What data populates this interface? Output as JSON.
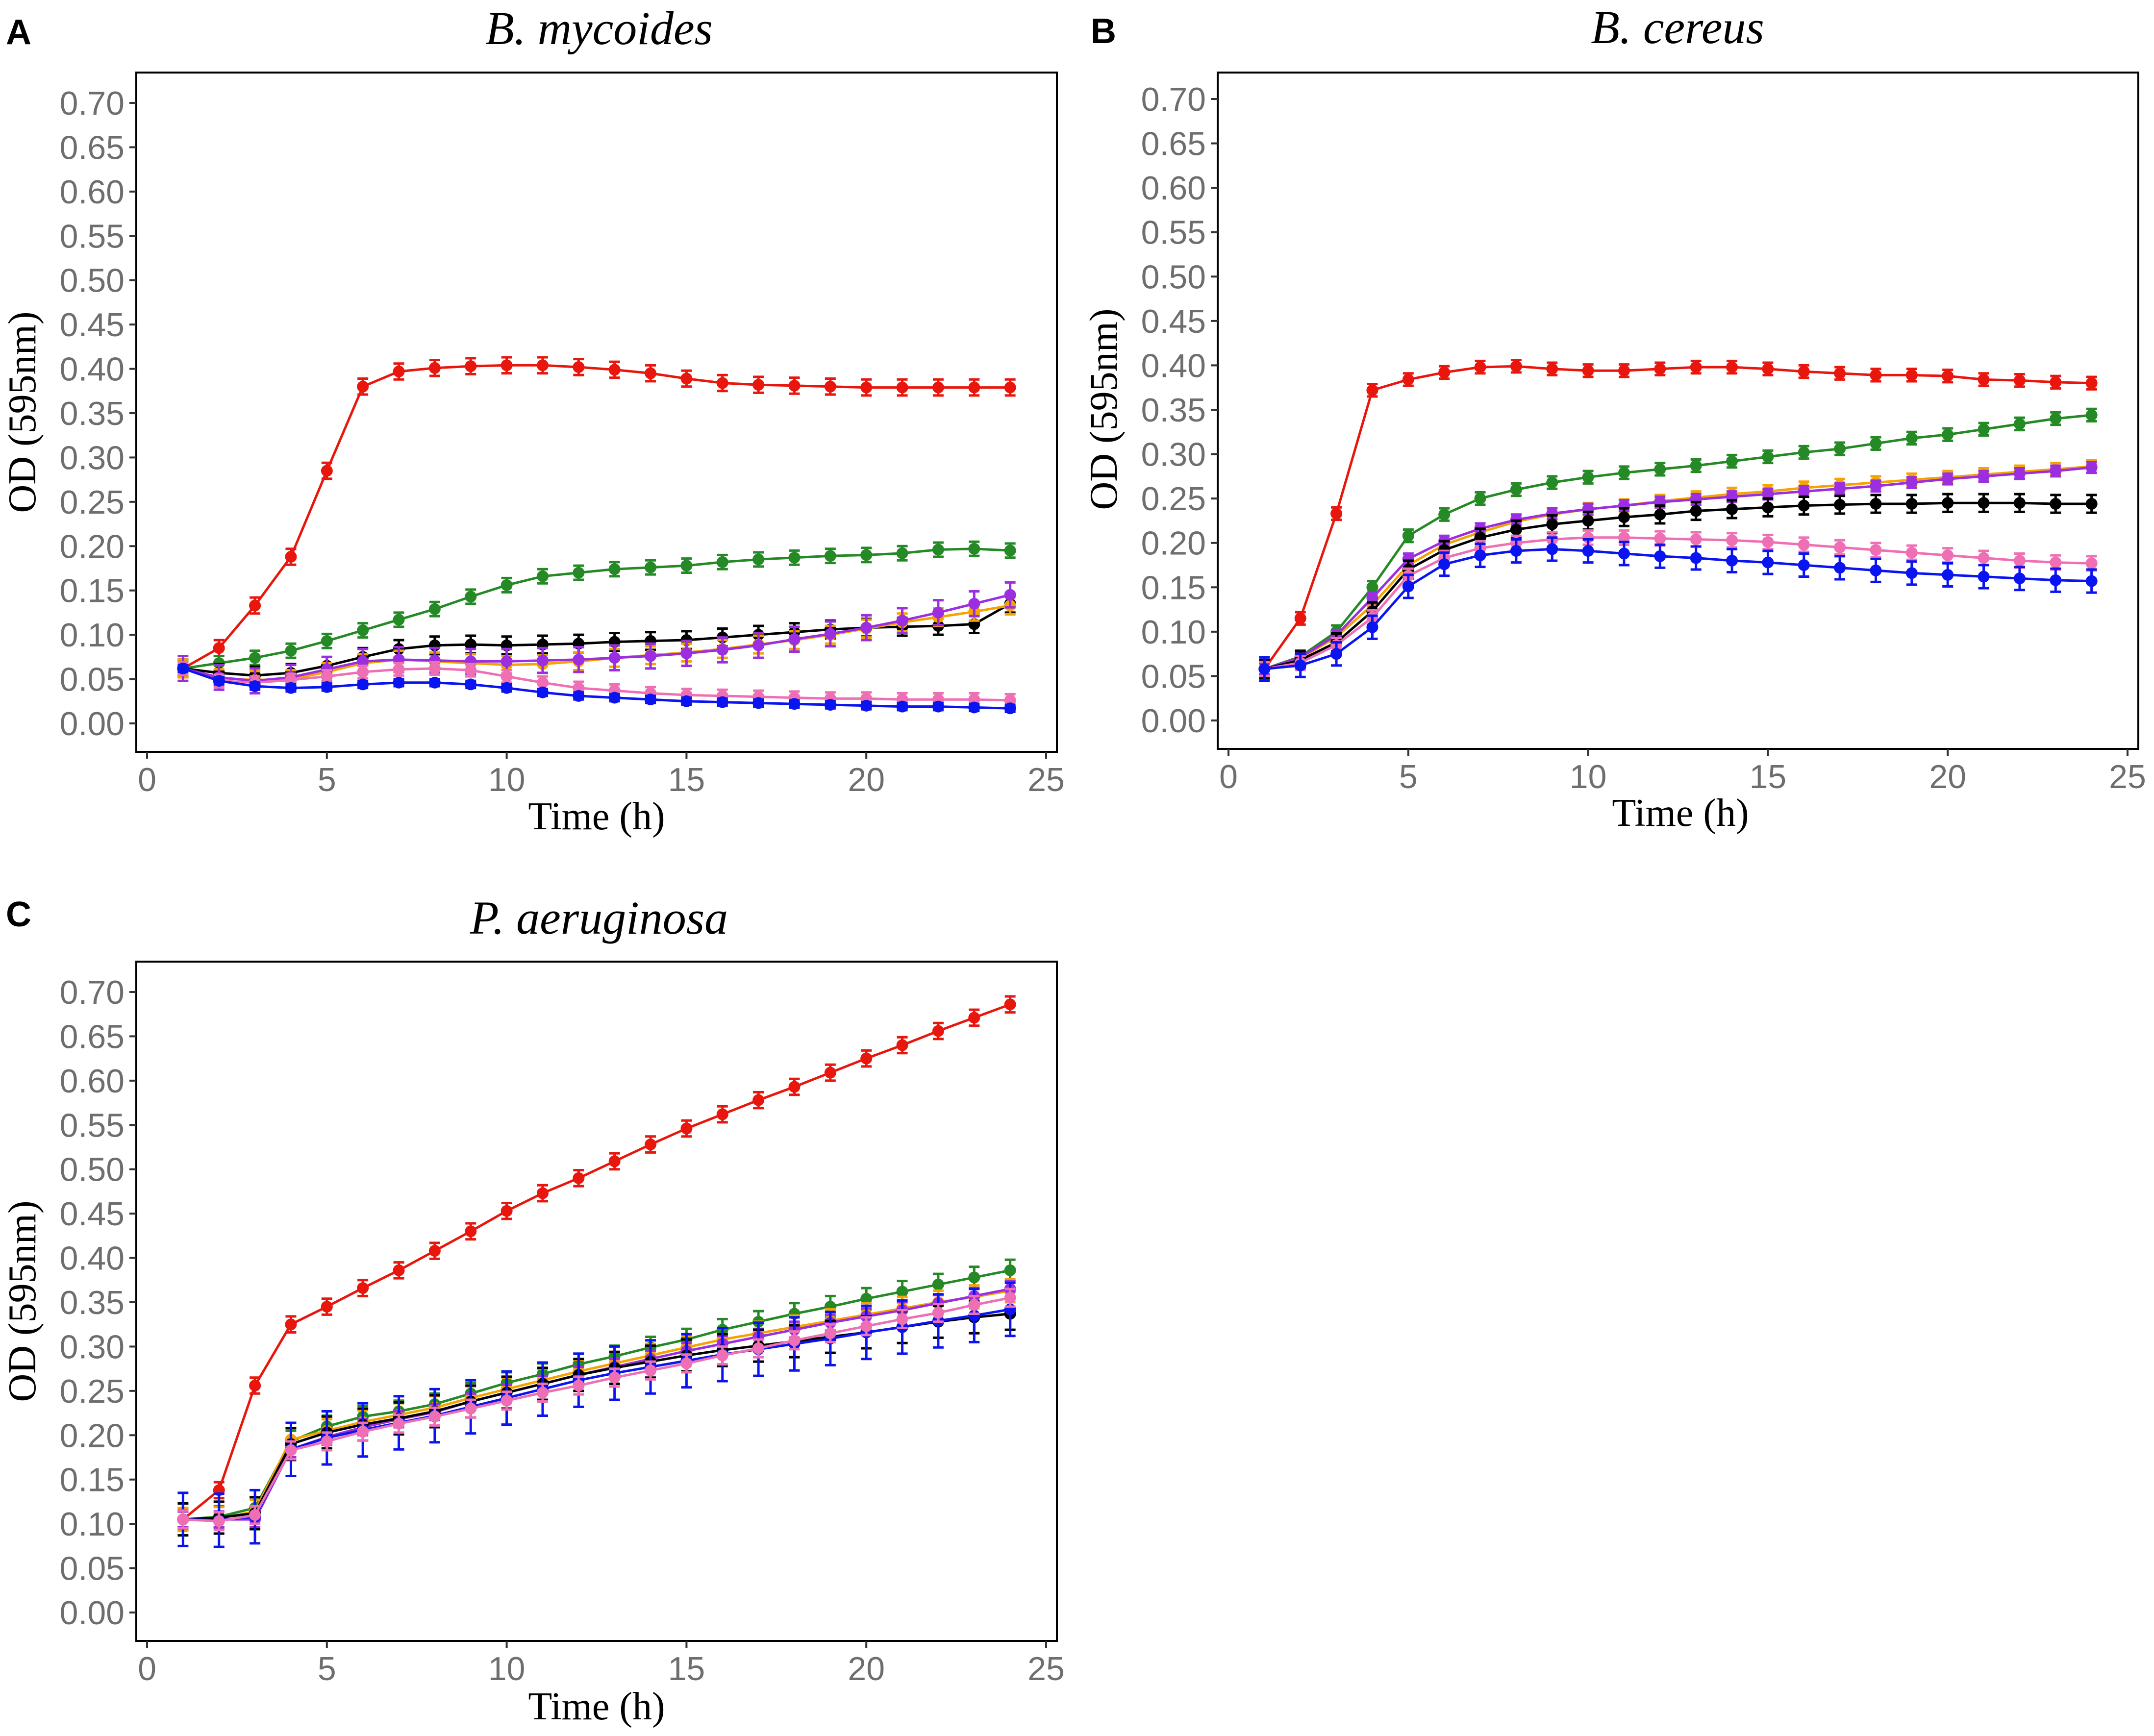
{
  "chart_data": [
    {
      "type": "line",
      "panel_label": "A",
      "title": "B. mycoides",
      "xlabel": "Time (h)",
      "ylabel": "OD (595nm)",
      "xlim": [
        0,
        25
      ],
      "ylim": [
        0,
        0.7
      ],
      "xticks": [
        "0",
        "5",
        "10",
        "15",
        "20",
        "25"
      ],
      "yticks": [
        "0.00",
        "0.05",
        "0.10",
        "0.15",
        "0.20",
        "0.25",
        "0.30",
        "0.35",
        "0.40",
        "0.45",
        "0.50",
        "0.55",
        "0.60",
        "0.65",
        "0.70"
      ],
      "x": [
        1,
        2,
        3,
        4,
        5,
        6,
        7,
        8,
        9,
        10,
        11,
        12,
        13,
        14,
        15,
        16,
        17,
        18,
        19,
        20,
        21,
        22,
        23,
        24
      ],
      "series": [
        {
          "name": "red",
          "color": "#e8160c",
          "values": [
            0.062,
            0.085,
            0.133,
            0.188,
            0.285,
            0.38,
            0.397,
            0.401,
            0.403,
            0.404,
            0.404,
            0.402,
            0.399,
            0.395,
            0.389,
            0.384,
            0.382,
            0.381,
            0.38,
            0.379,
            0.379,
            0.379,
            0.379,
            0.379
          ],
          "err": 0.009
        },
        {
          "name": "green",
          "color": "#258a25",
          "values": [
            0.062,
            0.068,
            0.074,
            0.082,
            0.093,
            0.105,
            0.117,
            0.129,
            0.143,
            0.156,
            0.166,
            0.17,
            0.174,
            0.176,
            0.178,
            0.182,
            0.185,
            0.187,
            0.189,
            0.19,
            0.192,
            0.196,
            0.197,
            0.195
          ],
          "err": 0.008
        },
        {
          "name": "black",
          "color": "#000000",
          "values": [
            0.062,
            0.057,
            0.054,
            0.057,
            0.065,
            0.075,
            0.084,
            0.088,
            0.089,
            0.088,
            0.089,
            0.09,
            0.092,
            0.093,
            0.094,
            0.097,
            0.1,
            0.103,
            0.106,
            0.108,
            0.109,
            0.11,
            0.112,
            0.135
          ],
          "err": 0.01
        },
        {
          "name": "orange",
          "color": "#f5a300",
          "values": [
            0.062,
            0.051,
            0.049,
            0.05,
            0.058,
            0.068,
            0.072,
            0.07,
            0.068,
            0.066,
            0.067,
            0.07,
            0.074,
            0.077,
            0.08,
            0.084,
            0.089,
            0.094,
            0.1,
            0.107,
            0.114,
            0.12,
            0.126,
            0.133
          ],
          "err": 0.01
        },
        {
          "name": "purple",
          "color": "#9a2ee0",
          "values": [
            0.062,
            0.052,
            0.048,
            0.052,
            0.061,
            0.07,
            0.072,
            0.071,
            0.07,
            0.07,
            0.071,
            0.072,
            0.074,
            0.076,
            0.079,
            0.083,
            0.088,
            0.095,
            0.101,
            0.108,
            0.116,
            0.125,
            0.135,
            0.145
          ],
          "err": 0.014
        },
        {
          "name": "pink",
          "color": "#ef6fb5",
          "values": [
            0.062,
            0.048,
            0.046,
            0.049,
            0.053,
            0.058,
            0.061,
            0.062,
            0.06,
            0.053,
            0.046,
            0.04,
            0.037,
            0.034,
            0.032,
            0.031,
            0.03,
            0.029,
            0.028,
            0.028,
            0.027,
            0.027,
            0.027,
            0.026
          ],
          "err": 0.007
        },
        {
          "name": "blue",
          "color": "#0a14f0",
          "values": [
            0.062,
            0.048,
            0.042,
            0.04,
            0.041,
            0.044,
            0.046,
            0.046,
            0.044,
            0.04,
            0.035,
            0.031,
            0.029,
            0.027,
            0.025,
            0.024,
            0.023,
            0.022,
            0.021,
            0.02,
            0.019,
            0.019,
            0.018,
            0.017
          ],
          "err": 0.004
        }
      ]
    },
    {
      "type": "line",
      "panel_label": "B",
      "title": "B. cereus",
      "xlabel": "Time (h)",
      "ylabel": "OD (595nm)",
      "xlim": [
        0,
        25
      ],
      "ylim": [
        0,
        0.7
      ],
      "xticks": [
        "0",
        "5",
        "10",
        "15",
        "20",
        "25"
      ],
      "yticks": [
        "0.00",
        "0.05",
        "0.10",
        "0.15",
        "0.20",
        "0.25",
        "0.30",
        "0.35",
        "0.40",
        "0.45",
        "0.50",
        "0.55",
        "0.60",
        "0.65",
        "0.70"
      ],
      "x": [
        1,
        2,
        3,
        4,
        5,
        6,
        7,
        8,
        9,
        10,
        11,
        12,
        13,
        14,
        15,
        16,
        17,
        18,
        19,
        20,
        21,
        22,
        23,
        24
      ],
      "series": [
        {
          "name": "red",
          "color": "#e8160c",
          "values": [
            0.058,
            0.115,
            0.233,
            0.372,
            0.384,
            0.392,
            0.398,
            0.399,
            0.396,
            0.394,
            0.394,
            0.396,
            0.398,
            0.398,
            0.396,
            0.393,
            0.391,
            0.389,
            0.389,
            0.388,
            0.384,
            0.383,
            0.381,
            0.38
          ],
          "err": 0.007
        },
        {
          "name": "green",
          "color": "#258a25",
          "values": [
            0.058,
            0.072,
            0.1,
            0.15,
            0.208,
            0.232,
            0.25,
            0.26,
            0.268,
            0.274,
            0.279,
            0.283,
            0.287,
            0.292,
            0.297,
            0.302,
            0.306,
            0.312,
            0.318,
            0.322,
            0.328,
            0.334,
            0.34,
            0.344
          ],
          "err": 0.007
        },
        {
          "name": "orange",
          "color": "#f5a300",
          "values": [
            0.058,
            0.07,
            0.094,
            0.13,
            0.175,
            0.198,
            0.212,
            0.224,
            0.232,
            0.238,
            0.242,
            0.247,
            0.251,
            0.255,
            0.258,
            0.262,
            0.265,
            0.268,
            0.271,
            0.274,
            0.277,
            0.28,
            0.283,
            0.286
          ],
          "err": 0.007
        },
        {
          "name": "purple",
          "color": "#9a2ee0",
          "values": [
            0.058,
            0.071,
            0.096,
            0.138,
            0.182,
            0.202,
            0.216,
            0.226,
            0.233,
            0.238,
            0.242,
            0.246,
            0.249,
            0.252,
            0.255,
            0.258,
            0.261,
            0.264,
            0.268,
            0.272,
            0.275,
            0.278,
            0.281,
            0.285
          ],
          "err": 0.006
        },
        {
          "name": "black",
          "color": "#000000",
          "values": [
            0.058,
            0.068,
            0.088,
            0.123,
            0.17,
            0.192,
            0.206,
            0.215,
            0.221,
            0.225,
            0.229,
            0.232,
            0.236,
            0.238,
            0.24,
            0.242,
            0.243,
            0.244,
            0.244,
            0.245,
            0.245,
            0.245,
            0.244,
            0.244
          ],
          "err": 0.01
        },
        {
          "name": "pink",
          "color": "#ef6fb5",
          "values": [
            0.058,
            0.065,
            0.085,
            0.116,
            0.163,
            0.183,
            0.194,
            0.2,
            0.204,
            0.206,
            0.206,
            0.205,
            0.204,
            0.203,
            0.201,
            0.198,
            0.195,
            0.192,
            0.189,
            0.186,
            0.183,
            0.18,
            0.178,
            0.177
          ],
          "err": 0.008
        },
        {
          "name": "blue",
          "color": "#0a14f0",
          "values": [
            0.058,
            0.062,
            0.075,
            0.105,
            0.151,
            0.176,
            0.186,
            0.191,
            0.193,
            0.191,
            0.188,
            0.185,
            0.183,
            0.18,
            0.178,
            0.175,
            0.172,
            0.169,
            0.166,
            0.164,
            0.162,
            0.16,
            0.158,
            0.157
          ],
          "err": 0.013
        }
      ]
    },
    {
      "type": "line",
      "panel_label": "C",
      "title": "P. aeruginosa",
      "xlabel": "Time (h)",
      "ylabel": "OD (595nm)",
      "xlim": [
        0,
        25
      ],
      "ylim": [
        0,
        0.7
      ],
      "xticks": [
        "0",
        "5",
        "10",
        "15",
        "20",
        "25"
      ],
      "yticks": [
        "0.00",
        "0.05",
        "0.10",
        "0.15",
        "0.20",
        "0.25",
        "0.30",
        "0.35",
        "0.40",
        "0.45",
        "0.50",
        "0.55",
        "0.60",
        "0.65",
        "0.70"
      ],
      "x": [
        1,
        2,
        3,
        4,
        5,
        6,
        7,
        8,
        9,
        10,
        11,
        12,
        13,
        14,
        15,
        16,
        17,
        18,
        19,
        20,
        21,
        22,
        23,
        24
      ],
      "series": [
        {
          "name": "red",
          "color": "#e8160c",
          "values": [
            0.105,
            0.138,
            0.256,
            0.325,
            0.345,
            0.366,
            0.386,
            0.408,
            0.43,
            0.453,
            0.473,
            0.49,
            0.509,
            0.528,
            0.546,
            0.562,
            0.578,
            0.593,
            0.609,
            0.625,
            0.64,
            0.656,
            0.671,
            0.686
          ],
          "err": 0.009
        },
        {
          "name": "green",
          "color": "#258a25",
          "values": [
            0.105,
            0.108,
            0.118,
            0.193,
            0.21,
            0.221,
            0.227,
            0.235,
            0.247,
            0.259,
            0.269,
            0.28,
            0.289,
            0.299,
            0.308,
            0.319,
            0.328,
            0.337,
            0.345,
            0.354,
            0.362,
            0.37,
            0.378,
            0.386
          ],
          "err": 0.012
        },
        {
          "name": "orange",
          "color": "#f5a300",
          "values": [
            0.105,
            0.106,
            0.114,
            0.195,
            0.205,
            0.215,
            0.223,
            0.231,
            0.242,
            0.252,
            0.262,
            0.272,
            0.281,
            0.29,
            0.299,
            0.308,
            0.315,
            0.322,
            0.329,
            0.336,
            0.343,
            0.35,
            0.356,
            0.363
          ],
          "err": 0.013
        },
        {
          "name": "purple",
          "color": "#9a2ee0",
          "values": [
            0.105,
            0.105,
            0.105,
            0.184,
            0.198,
            0.209,
            0.218,
            0.226,
            0.238,
            0.248,
            0.258,
            0.268,
            0.277,
            0.286,
            0.295,
            0.303,
            0.311,
            0.319,
            0.327,
            0.334,
            0.341,
            0.349,
            0.357,
            0.365
          ],
          "err": 0.009
        },
        {
          "name": "black",
          "color": "#000000",
          "values": [
            0.105,
            0.107,
            0.112,
            0.19,
            0.203,
            0.212,
            0.219,
            0.227,
            0.238,
            0.248,
            0.258,
            0.268,
            0.276,
            0.283,
            0.29,
            0.296,
            0.301,
            0.306,
            0.311,
            0.316,
            0.322,
            0.328,
            0.333,
            0.337
          ],
          "err": 0.018
        },
        {
          "name": "blue",
          "color": "#0a14f0",
          "values": [
            0.105,
            0.104,
            0.108,
            0.184,
            0.197,
            0.206,
            0.214,
            0.222,
            0.232,
            0.242,
            0.252,
            0.262,
            0.27,
            0.277,
            0.284,
            0.291,
            0.297,
            0.303,
            0.309,
            0.316,
            0.322,
            0.329,
            0.335,
            0.342
          ],
          "err": 0.03
        },
        {
          "name": "pink",
          "color": "#ef6fb5",
          "values": [
            0.105,
            0.103,
            0.11,
            0.183,
            0.193,
            0.204,
            0.213,
            0.221,
            0.23,
            0.239,
            0.248,
            0.256,
            0.265,
            0.273,
            0.281,
            0.29,
            0.298,
            0.307,
            0.315,
            0.323,
            0.331,
            0.338,
            0.347,
            0.355
          ],
          "err": 0.01
        }
      ]
    }
  ]
}
